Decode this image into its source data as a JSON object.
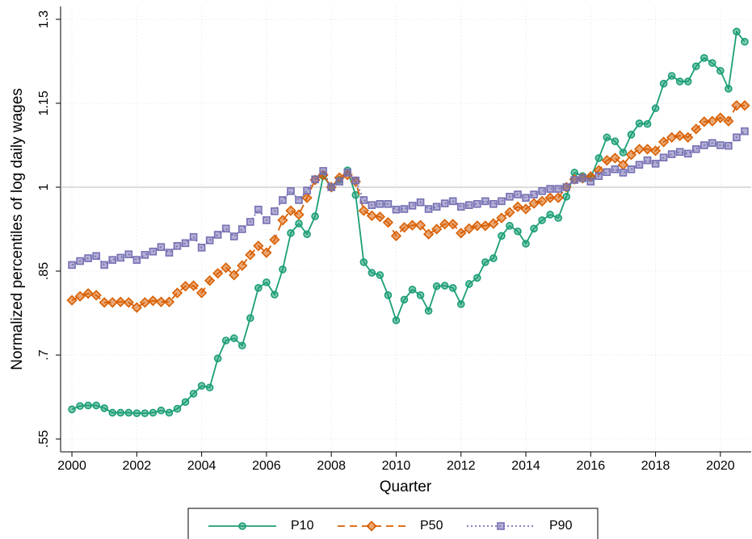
{
  "chart_data": {
    "type": "line",
    "x_label": "Quarter",
    "y_label": "Normalized percentiles of log daily wages",
    "x": [
      2000,
      2000.25,
      2000.5,
      2000.75,
      2001,
      2001.25,
      2001.5,
      2001.75,
      2002,
      2002.25,
      2002.5,
      2002.75,
      2003,
      2003.25,
      2003.5,
      2003.75,
      2004,
      2004.25,
      2004.5,
      2004.75,
      2005,
      2005.25,
      2005.5,
      2005.75,
      2006,
      2006.25,
      2006.5,
      2006.75,
      2007,
      2007.25,
      2007.5,
      2007.75,
      2008,
      2008.25,
      2008.5,
      2008.75,
      2009,
      2009.25,
      2009.5,
      2009.75,
      2010,
      2010.25,
      2010.5,
      2010.75,
      2011,
      2011.25,
      2011.5,
      2011.75,
      2012,
      2012.25,
      2012.5,
      2012.75,
      2013,
      2013.25,
      2013.5,
      2013.75,
      2014,
      2014.25,
      2014.5,
      2014.75,
      2015,
      2015.25,
      2015.5,
      2015.75,
      2016,
      2016.25,
      2016.5,
      2016.75,
      2017,
      2017.25,
      2017.5,
      2017.75,
      2018,
      2018.25,
      2018.5,
      2018.75,
      2019,
      2019.25,
      2019.5,
      2019.75,
      2020,
      2020.25,
      2020.5,
      2020.75
    ],
    "series": [
      {
        "name": "P10",
        "color": "#1b9e77",
        "marker": "circle",
        "dash": "solid",
        "values": [
          0.603,
          0.609,
          0.61,
          0.61,
          0.605,
          0.597,
          0.597,
          0.597,
          0.596,
          0.596,
          0.597,
          0.601,
          0.597,
          0.604,
          0.616,
          0.631,
          0.645,
          0.642,
          0.694,
          0.726,
          0.73,
          0.717,
          0.766,
          0.82,
          0.83,
          0.808,
          0.853,
          0.918,
          0.935,
          0.916,
          0.948,
          1.02,
          1.0,
          1.013,
          1.03,
          0.986,
          0.866,
          0.847,
          0.843,
          0.807,
          0.762,
          0.799,
          0.817,
          0.807,
          0.779,
          0.823,
          0.824,
          0.82,
          0.791,
          0.827,
          0.838,
          0.866,
          0.873,
          0.913,
          0.931,
          0.921,
          0.899,
          0.926,
          0.941,
          0.951,
          0.945,
          0.983,
          1.026,
          1.02,
          1.017,
          1.052,
          1.089,
          1.082,
          1.062,
          1.094,
          1.114,
          1.113,
          1.141,
          1.185,
          1.199,
          1.189,
          1.189,
          1.216,
          1.231,
          1.222,
          1.208,
          1.176,
          1.278,
          1.26
        ]
      },
      {
        "name": "P50",
        "color": "#d95f02",
        "marker": "diamond",
        "dash": "dashed",
        "values": [
          0.798,
          0.805,
          0.81,
          0.807,
          0.794,
          0.794,
          0.795,
          0.794,
          0.785,
          0.794,
          0.797,
          0.795,
          0.795,
          0.811,
          0.823,
          0.824,
          0.811,
          0.833,
          0.846,
          0.856,
          0.843,
          0.86,
          0.879,
          0.895,
          0.883,
          0.906,
          0.941,
          0.958,
          0.951,
          0.981,
          1.013,
          1.022,
          1.0,
          1.017,
          1.022,
          1.01,
          0.958,
          0.949,
          0.947,
          0.937,
          0.913,
          0.928,
          0.932,
          0.932,
          0.916,
          0.925,
          0.934,
          0.934,
          0.918,
          0.926,
          0.931,
          0.931,
          0.935,
          0.945,
          0.955,
          0.965,
          0.961,
          0.971,
          0.975,
          0.981,
          0.981,
          1.0,
          1.014,
          1.016,
          1.019,
          1.03,
          1.048,
          1.052,
          1.04,
          1.058,
          1.068,
          1.068,
          1.065,
          1.081,
          1.089,
          1.092,
          1.089,
          1.104,
          1.117,
          1.118,
          1.124,
          1.118,
          1.146,
          1.146
        ]
      },
      {
        "name": "P90",
        "color": "#7570b3",
        "marker": "square",
        "dash": "dotted",
        "values": [
          0.861,
          0.868,
          0.873,
          0.877,
          0.861,
          0.87,
          0.874,
          0.88,
          0.87,
          0.879,
          0.885,
          0.893,
          0.883,
          0.895,
          0.9,
          0.911,
          0.892,
          0.905,
          0.915,
          0.926,
          0.912,
          0.925,
          0.938,
          0.96,
          0.941,
          0.957,
          0.977,
          0.993,
          0.977,
          0.994,
          1.014,
          1.029,
          1.0,
          1.01,
          1.026,
          1.012,
          0.977,
          0.968,
          0.97,
          0.97,
          0.96,
          0.961,
          0.967,
          0.973,
          0.961,
          0.965,
          0.971,
          0.975,
          0.965,
          0.968,
          0.97,
          0.975,
          0.97,
          0.975,
          0.983,
          0.987,
          0.981,
          0.987,
          0.993,
          0.997,
          0.997,
          1.0,
          1.013,
          1.016,
          1.01,
          1.02,
          1.027,
          1.032,
          1.026,
          1.032,
          1.04,
          1.048,
          1.042,
          1.053,
          1.059,
          1.063,
          1.06,
          1.068,
          1.075,
          1.079,
          1.075,
          1.074,
          1.089,
          1.1
        ]
      }
    ],
    "xlim": [
      1999.65,
      2020.95
    ],
    "xticks": [
      2000,
      2002,
      2004,
      2006,
      2008,
      2010,
      2012,
      2014,
      2016,
      2018,
      2020
    ],
    "ylim": [
      0.527,
      1.323
    ],
    "yticks": [
      {
        "value": 0.55,
        "label": ".55"
      },
      {
        "value": 0.7,
        "label": ".7"
      },
      {
        "value": 0.85,
        "label": ".85"
      },
      1,
      1.15,
      1.3
    ],
    "reference_line": 1,
    "grid": true,
    "legend": "bottom"
  }
}
